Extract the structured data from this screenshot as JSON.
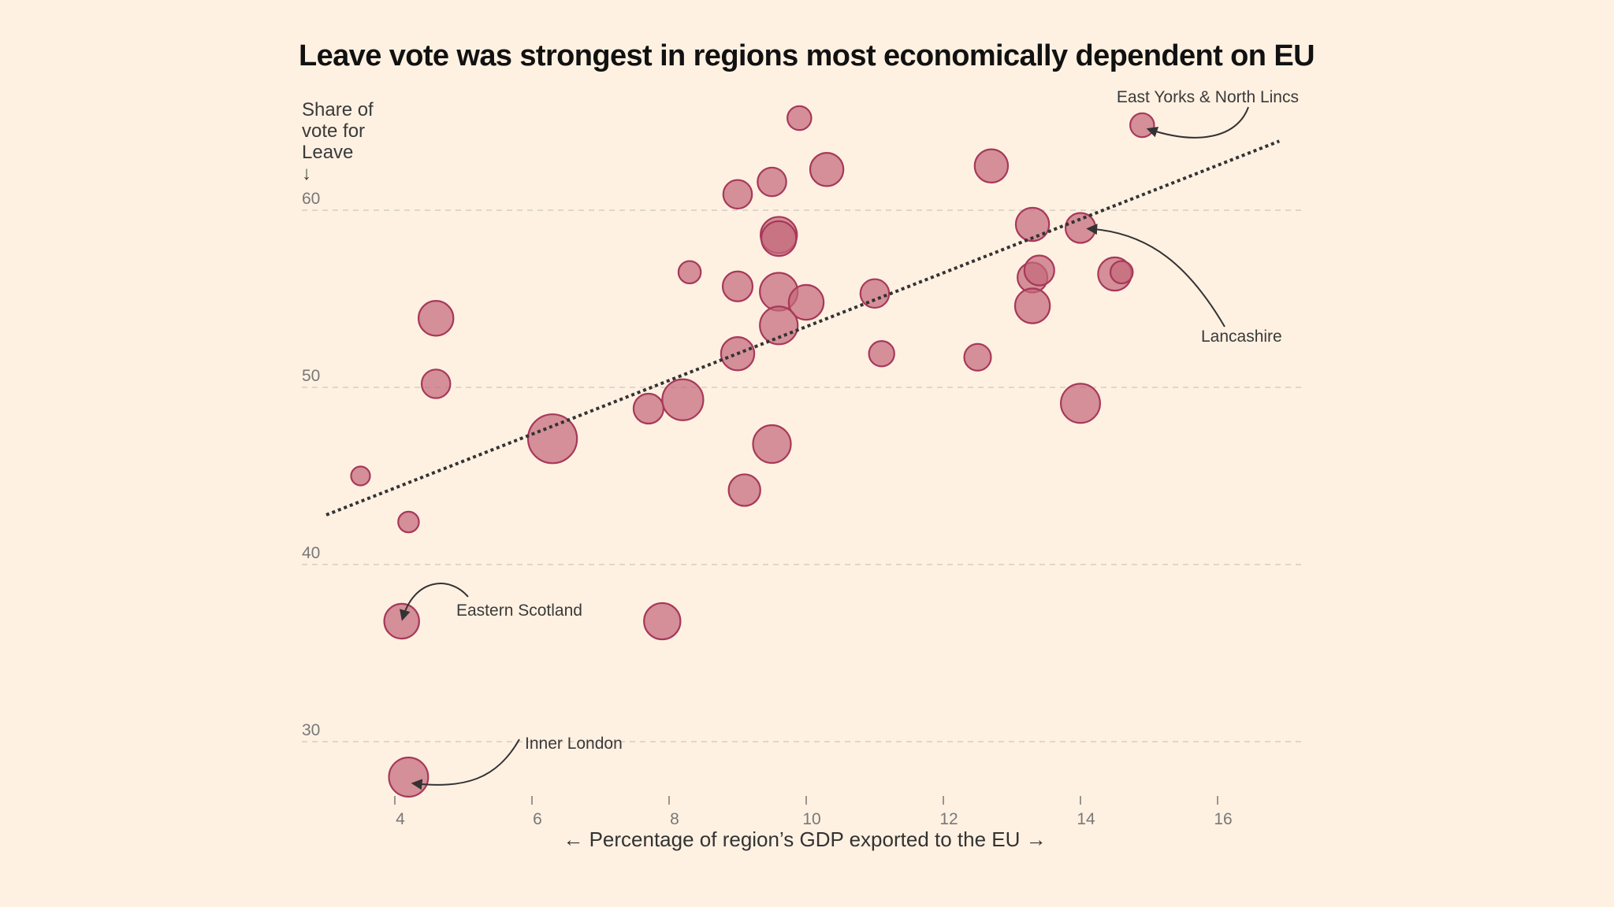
{
  "chart_data": {
    "type": "scatter",
    "title": "Leave vote was strongest in regions most economically dependent on EU",
    "ylabel_lines": [
      "Share of",
      "vote for",
      "Leave",
      "↓"
    ],
    "xlabel": "← Percentage of region’s GDP exported to the EU →",
    "xlim": [
      3,
      17.2
    ],
    "ylim": [
      26,
      66
    ],
    "x_ticks": [
      4,
      6,
      8,
      10,
      12,
      14,
      16
    ],
    "x_tick_labels": [
      "4",
      "6",
      "8",
      "10",
      "12",
      "14",
      "16"
    ],
    "y_ticks": [
      30,
      40,
      50,
      60
    ],
    "y_tick_labels": [
      "30",
      "40",
      "50",
      "60"
    ],
    "grid": "horizontal-dashed",
    "bubble_color": "#c46a7c",
    "bubble_stroke": "#a8385a",
    "bubble_size_note": "relative size (bubble area)",
    "points": [
      {
        "x": 3.5,
        "y": 45.0,
        "size": 1.0
      },
      {
        "x": 4.2,
        "y": 42.4,
        "size": 1.2
      },
      {
        "x": 4.6,
        "y": 53.9,
        "size": 3.4
      },
      {
        "x": 4.6,
        "y": 50.2,
        "size": 2.3
      },
      {
        "x": 4.1,
        "y": 36.8,
        "size": 3.4,
        "label": "Eastern Scotland"
      },
      {
        "x": 4.2,
        "y": 28.0,
        "size": 4.3,
        "label": "Inner London"
      },
      {
        "x": 6.3,
        "y": 47.1,
        "size": 6.7
      },
      {
        "x": 7.7,
        "y": 48.8,
        "size": 2.5
      },
      {
        "x": 8.2,
        "y": 49.3,
        "size": 4.7
      },
      {
        "x": 7.9,
        "y": 36.8,
        "size": 3.7
      },
      {
        "x": 8.3,
        "y": 56.5,
        "size": 1.4
      },
      {
        "x": 9.0,
        "y": 60.9,
        "size": 2.3
      },
      {
        "x": 9.5,
        "y": 61.6,
        "size": 2.3
      },
      {
        "x": 9.9,
        "y": 65.2,
        "size": 1.6
      },
      {
        "x": 10.3,
        "y": 62.3,
        "size": 3.1
      },
      {
        "x": 9.6,
        "y": 58.6,
        "size": 3.7
      },
      {
        "x": 9.6,
        "y": 58.4,
        "size": 3.4
      },
      {
        "x": 9.0,
        "y": 55.7,
        "size": 2.5
      },
      {
        "x": 9.6,
        "y": 55.4,
        "size": 4.0
      },
      {
        "x": 10.0,
        "y": 54.8,
        "size": 3.4
      },
      {
        "x": 9.6,
        "y": 53.5,
        "size": 4.0
      },
      {
        "x": 9.0,
        "y": 51.9,
        "size": 3.1
      },
      {
        "x": 9.5,
        "y": 46.8,
        "size": 4.0
      },
      {
        "x": 9.1,
        "y": 44.2,
        "size": 2.8
      },
      {
        "x": 11.0,
        "y": 55.3,
        "size": 2.3
      },
      {
        "x": 11.1,
        "y": 51.9,
        "size": 1.8
      },
      {
        "x": 12.5,
        "y": 51.7,
        "size": 2.0
      },
      {
        "x": 12.7,
        "y": 62.5,
        "size": 3.1
      },
      {
        "x": 13.3,
        "y": 59.2,
        "size": 3.1
      },
      {
        "x": 13.3,
        "y": 56.2,
        "size": 2.5
      },
      {
        "x": 13.4,
        "y": 56.6,
        "size": 2.5
      },
      {
        "x": 13.3,
        "y": 54.6,
        "size": 3.4
      },
      {
        "x": 14.0,
        "y": 59.0,
        "size": 2.5,
        "label": "Lancashire"
      },
      {
        "x": 14.0,
        "y": 49.1,
        "size": 4.3
      },
      {
        "x": 14.5,
        "y": 56.4,
        "size": 3.1
      },
      {
        "x": 14.6,
        "y": 56.5,
        "size": 1.4
      },
      {
        "x": 14.9,
        "y": 64.8,
        "size": 1.6,
        "label": "East Yorks & North Lincs"
      }
    ],
    "trendline": {
      "style": "dotted",
      "x": [
        3.0,
        16.9
      ],
      "y": [
        42.8,
        63.9
      ]
    },
    "annotations": [
      {
        "text": "East Yorks & North Lincs",
        "target": "East Yorks & North Lincs"
      },
      {
        "text": "Lancashire",
        "target": "Lancashire"
      },
      {
        "text": "Eastern Scotland",
        "target": "Eastern Scotland"
      },
      {
        "text": "Inner London",
        "target": "Inner London"
      }
    ]
  }
}
